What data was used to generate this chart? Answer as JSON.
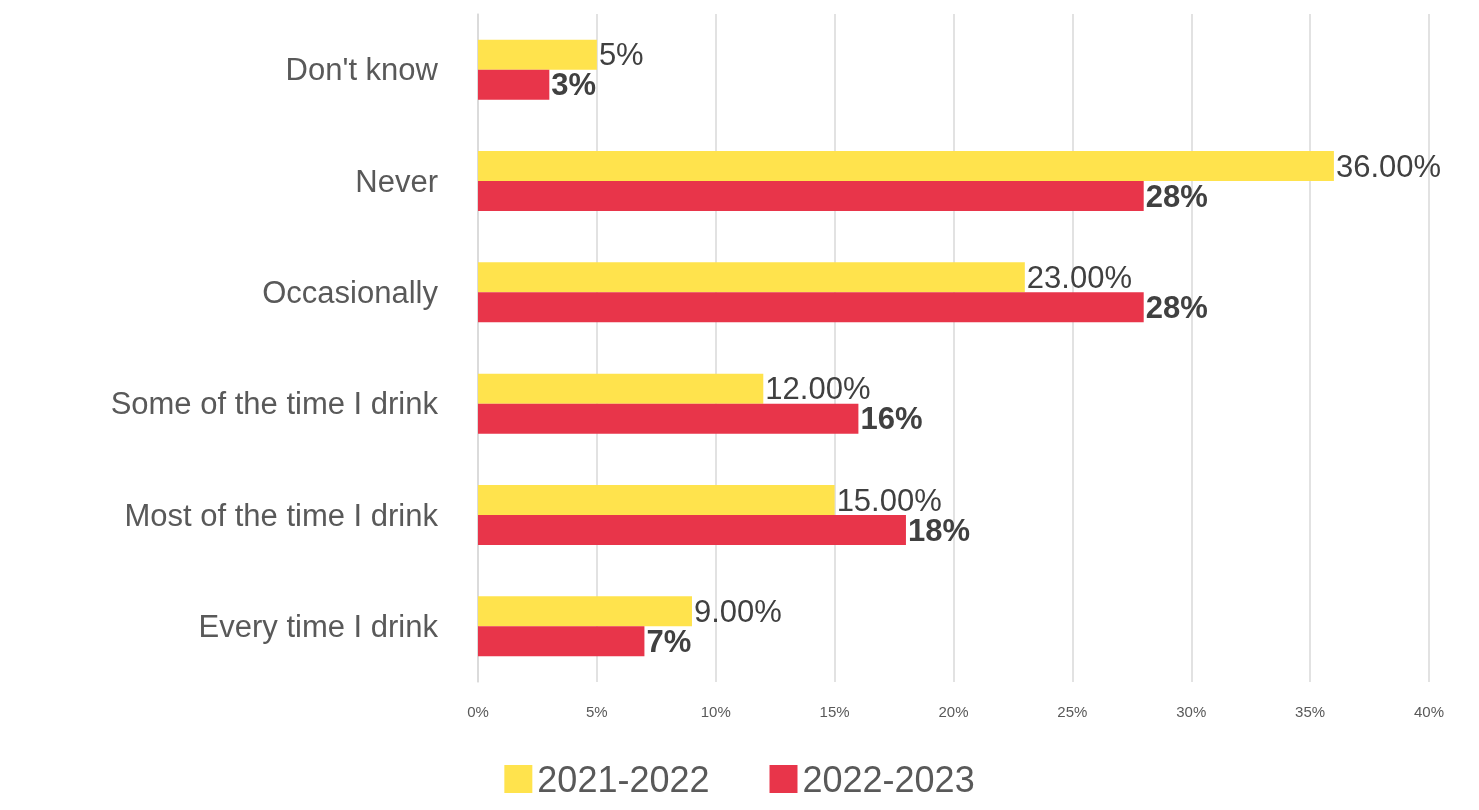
{
  "chart_data": {
    "type": "bar",
    "orientation": "horizontal",
    "categories": [
      "Don't know",
      "Never",
      "Occasionally",
      "Some of the time I drink",
      "Most of the time I drink",
      "Every time I drink"
    ],
    "series": [
      {
        "name": "2021-2022",
        "color": "#ffe34d",
        "values": [
          5,
          36,
          23,
          12,
          15,
          9
        ],
        "value_labels": [
          "5%",
          "36.00%",
          "23.00%",
          "12.00%",
          "15.00%",
          "9.00%"
        ]
      },
      {
        "name": "2022-2023",
        "color": "#e8354a",
        "values": [
          3,
          28,
          28,
          16,
          18,
          7
        ],
        "value_labels": [
          "3%",
          "28%",
          "28%",
          "16%",
          "18%",
          "7%"
        ]
      }
    ],
    "xlim": [
      0,
      40
    ],
    "xticks": [
      {
        "value": 0,
        "label": "0%"
      },
      {
        "value": 5,
        "label": "5%"
      },
      {
        "value": 10,
        "label": "10%"
      },
      {
        "value": 15,
        "label": "15%"
      },
      {
        "value": 20,
        "label": "20%"
      },
      {
        "value": 25,
        "label": "25%"
      },
      {
        "value": 30,
        "label": "30%"
      },
      {
        "value": 35,
        "label": "35%"
      },
      {
        "value": 40,
        "label": "40%"
      }
    ],
    "grid": "x",
    "legend": "bottom"
  }
}
